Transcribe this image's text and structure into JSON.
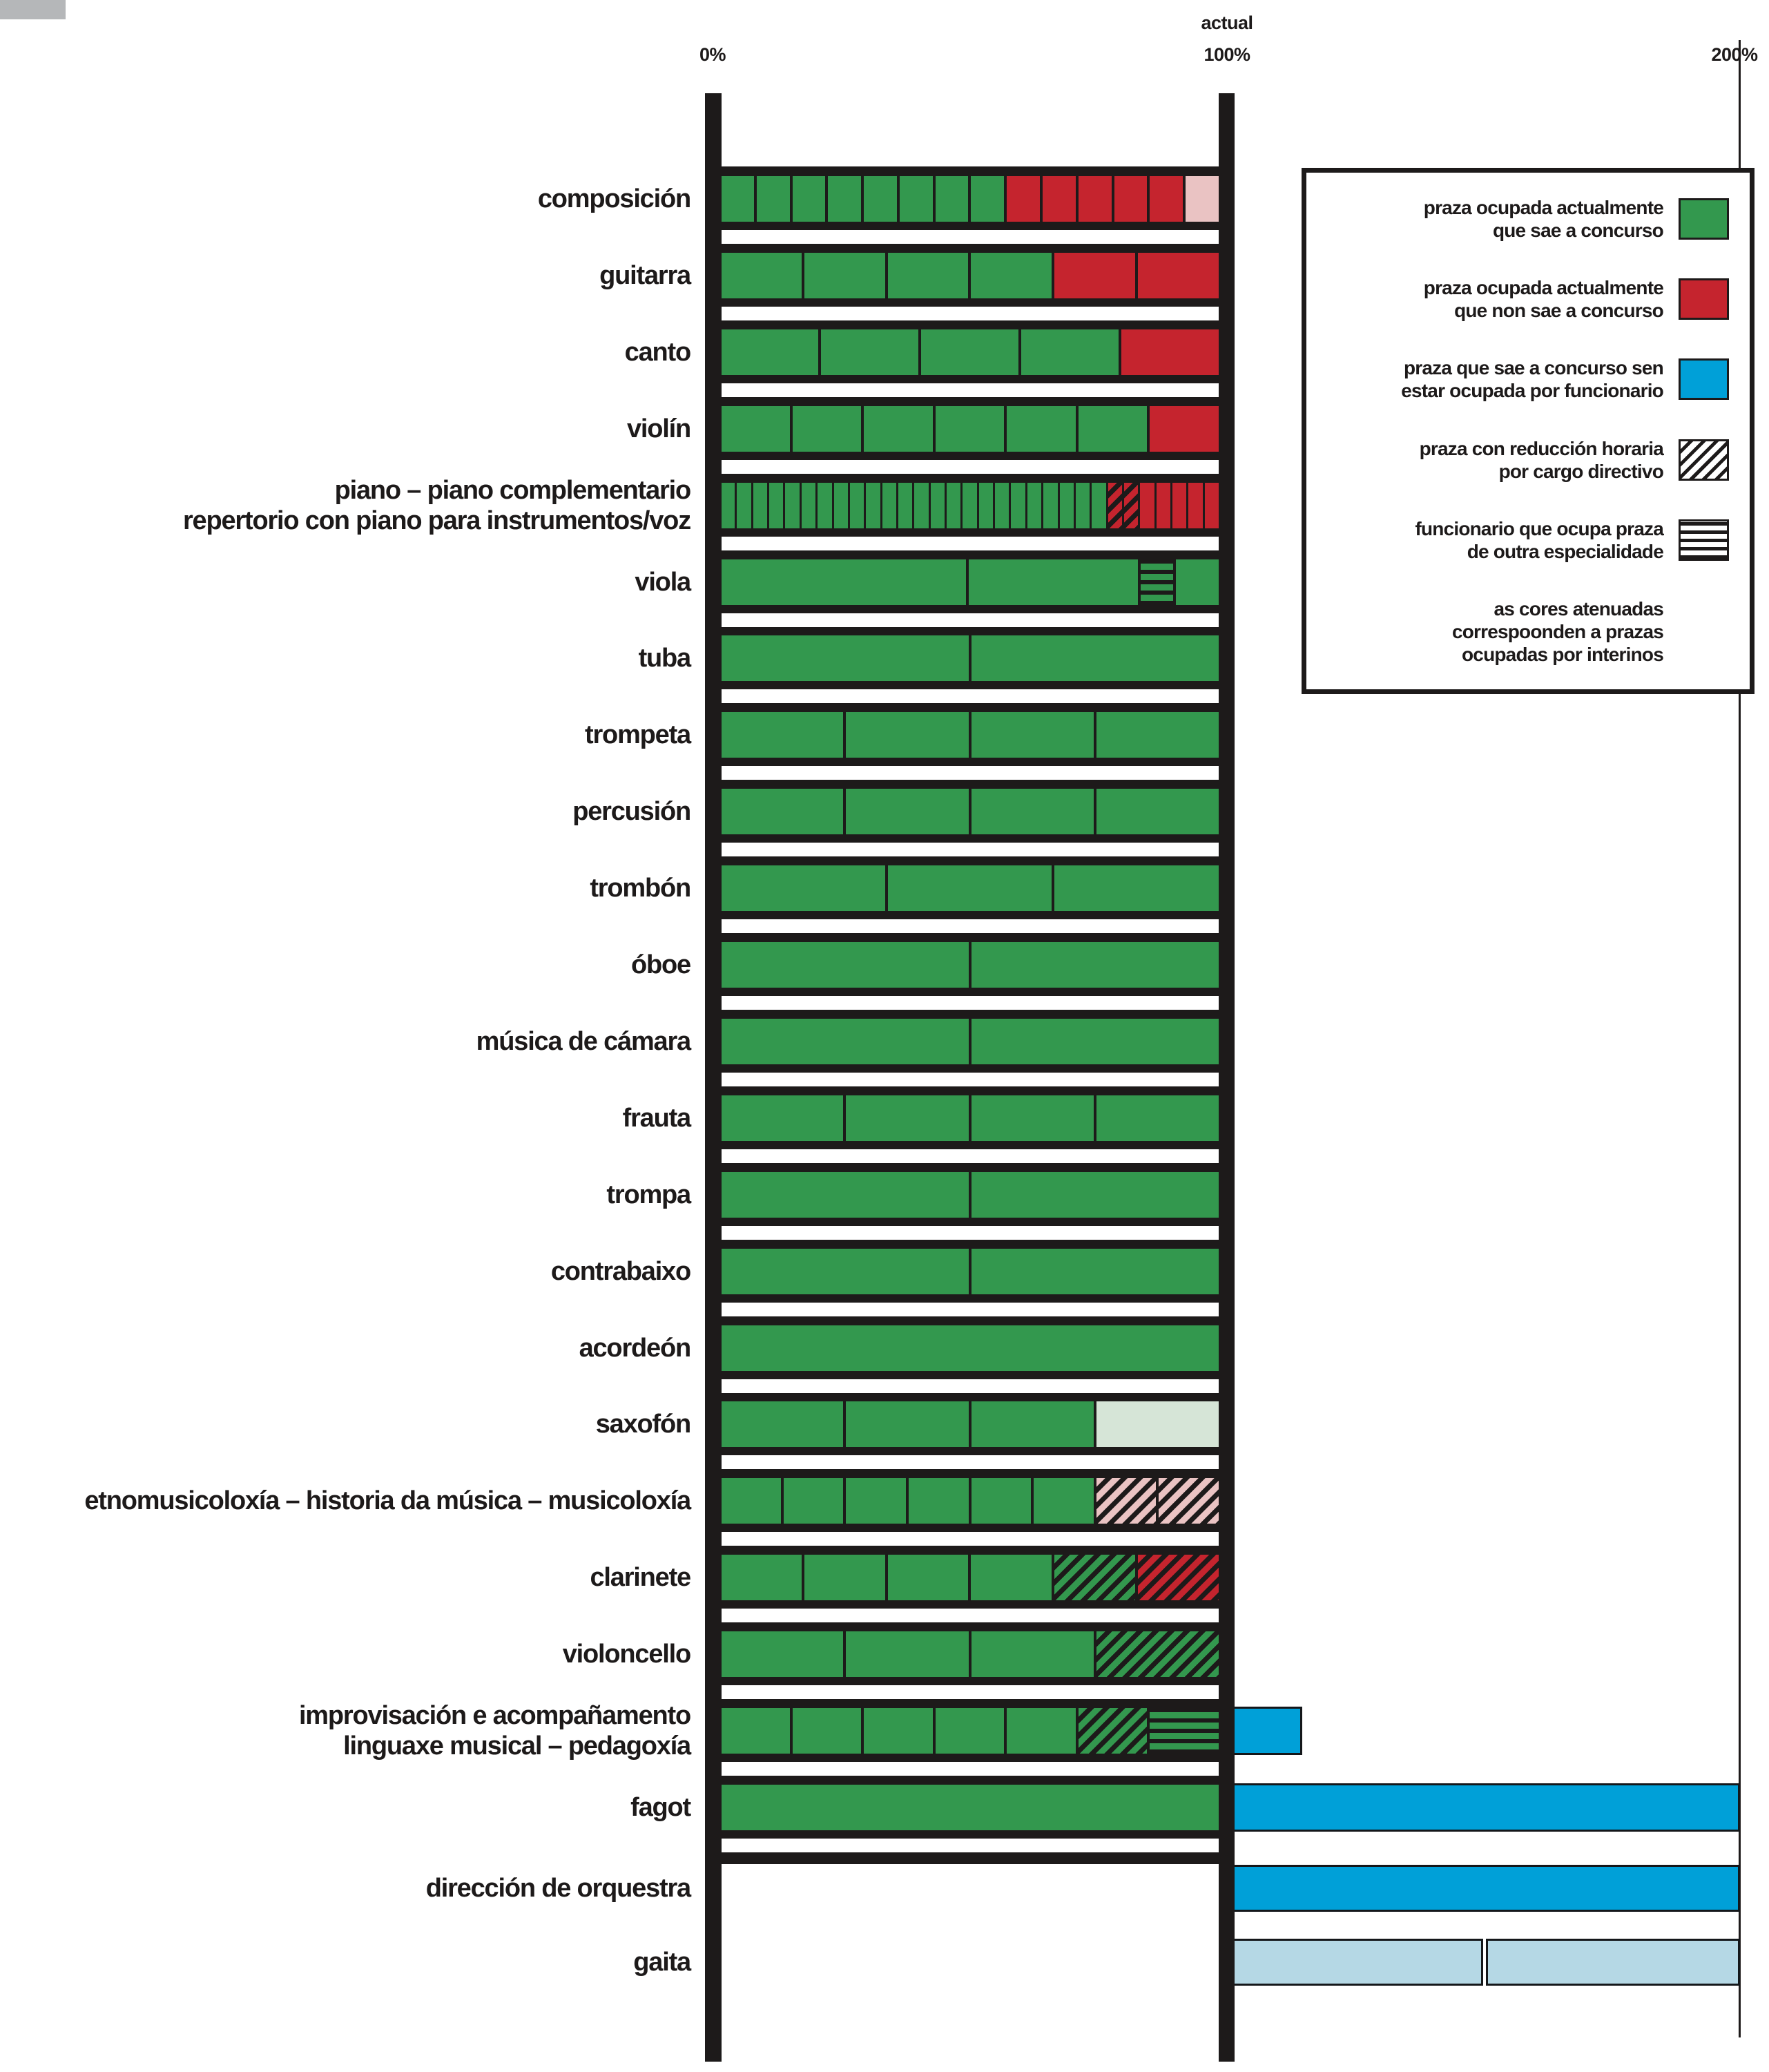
{
  "axis": {
    "zero": "0%",
    "actual": "actual",
    "hundred": "100%",
    "two_hundred": "200%"
  },
  "legend": {
    "items": [
      {
        "lines": [
          "praza ocupada actualmente",
          "que sae a concurso"
        ],
        "swatch": "green"
      },
      {
        "lines": [
          "praza ocupada actualmente",
          "que non sae a concurso"
        ],
        "swatch": "red"
      },
      {
        "lines": [
          "praza que sae a concurso sen",
          "estar ocupada por funcionario"
        ],
        "swatch": "blue"
      },
      {
        "lines": [
          "praza con reducción horaria",
          "por cargo directivo"
        ],
        "swatch": "diag"
      },
      {
        "lines": [
          "funcionario que ocupa praza",
          "de outra especialidade"
        ],
        "swatch": "hlines"
      },
      {
        "lines": [
          "as cores atenuadas",
          "correspoonden a prazas",
          "ocupadas por interinos"
        ],
        "swatch": null
      }
    ]
  },
  "chart_data": {
    "type": "bar",
    "subtype": "stacked-unit-ladder",
    "xlabel": "",
    "ylabel": "",
    "x_axis": {
      "min_pct": 0,
      "max_pct": 200,
      "ticks": [
        "0%",
        "100%",
        "200%"
      ],
      "actual_marker_label": "actual",
      "actual_marker_pct": 100
    },
    "grid": false,
    "legend_position": "right",
    "colors": {
      "green": "#33984e",
      "red": "#c5242e",
      "red-pale": "#eac3c3",
      "green-pale": "#d6e5d7",
      "blue": "#00a0d8",
      "blue-pale": "#b5d8e5",
      "frame-black": "#1d1a1a",
      "background": "#ffffff"
    },
    "style_meanings": {
      "green": "praza ocupada actualmente que sae a concurso",
      "red": "praza ocupada actualmente que non sae a concurso",
      "blue": "praza que sae a concurso sen estar ocupada por funcionario",
      "diag-hatch": "praza con reducción horaria por cargo directivo",
      "hlines-hatch": "funcionario que ocupa praza de outra especialidade",
      "pale": "cor atenuada: praza ocupada por interino"
    },
    "rows": [
      {
        "label": [
          "composición"
        ],
        "units": 14,
        "segments": [
          {
            "style": "green",
            "count": 8
          },
          {
            "style": "red",
            "count": 5
          },
          {
            "style": "red-pale",
            "count": 1
          }
        ]
      },
      {
        "label": [
          "guitarra"
        ],
        "units": 6,
        "segments": [
          {
            "style": "green",
            "count": 4
          },
          {
            "style": "red",
            "count": 2
          }
        ]
      },
      {
        "label": [
          "canto"
        ],
        "units": 5,
        "segments": [
          {
            "style": "green",
            "count": 4
          },
          {
            "style": "red",
            "count": 1
          }
        ]
      },
      {
        "label": [
          "violín"
        ],
        "units": 7,
        "segments": [
          {
            "style": "green",
            "count": 6
          },
          {
            "style": "red",
            "count": 1
          }
        ]
      },
      {
        "label": [
          "piano – piano complementario",
          "repertorio con piano para instrumentos/voz"
        ],
        "units": 31,
        "segments": [
          {
            "style": "green",
            "count": 24
          },
          {
            "style": "red-diag",
            "count": 2
          },
          {
            "style": "red",
            "count": 5
          }
        ]
      },
      {
        "label": [
          "viola"
        ],
        "segments": [
          {
            "style": "green",
            "width_pct": 50
          },
          {
            "style": "green",
            "width_pct": 34.6
          },
          {
            "style": "green-hlines",
            "width_pct": 6.6
          },
          {
            "style": "green",
            "width_pct": 8.8
          }
        ]
      },
      {
        "label": [
          "tuba"
        ],
        "units": 2,
        "segments": [
          {
            "style": "green",
            "count": 2
          }
        ]
      },
      {
        "label": [
          "trompeta"
        ],
        "units": 4,
        "segments": [
          {
            "style": "green",
            "count": 4
          }
        ]
      },
      {
        "label": [
          "percusión"
        ],
        "units": 4,
        "segments": [
          {
            "style": "green",
            "count": 4
          }
        ]
      },
      {
        "label": [
          "trombón"
        ],
        "units": 3,
        "segments": [
          {
            "style": "green",
            "count": 3
          }
        ]
      },
      {
        "label": [
          "óboe"
        ],
        "units": 2,
        "segments": [
          {
            "style": "green",
            "count": 2
          }
        ]
      },
      {
        "label": [
          "música de cámara"
        ],
        "units": 2,
        "segments": [
          {
            "style": "green",
            "count": 2
          }
        ]
      },
      {
        "label": [
          "frauta"
        ],
        "units": 4,
        "segments": [
          {
            "style": "green",
            "count": 4
          }
        ]
      },
      {
        "label": [
          "trompa"
        ],
        "units": 2,
        "segments": [
          {
            "style": "green",
            "count": 2
          }
        ]
      },
      {
        "label": [
          "contrabaixo"
        ],
        "units": 2,
        "segments": [
          {
            "style": "green",
            "count": 2
          }
        ]
      },
      {
        "label": [
          "acordeón"
        ],
        "units": 1,
        "segments": [
          {
            "style": "green",
            "count": 1
          }
        ]
      },
      {
        "label": [
          "saxofón"
        ],
        "units": 4,
        "segments": [
          {
            "style": "green",
            "count": 3
          },
          {
            "style": "green-pale",
            "count": 1
          }
        ]
      },
      {
        "label": [
          "etnomusicoloxía – historia da música – musicoloxía"
        ],
        "units": 8,
        "segments": [
          {
            "style": "green",
            "count": 6
          },
          {
            "style": "pink-diag",
            "count": 2
          }
        ]
      },
      {
        "label": [
          "clarinete"
        ],
        "units": 6,
        "segments": [
          {
            "style": "green",
            "count": 4
          },
          {
            "style": "green-diag",
            "count": 1
          },
          {
            "style": "red-diag",
            "count": 1
          }
        ]
      },
      {
        "label": [
          "violoncello"
        ],
        "units": 4,
        "segments": [
          {
            "style": "green",
            "count": 3
          },
          {
            "style": "green-diag",
            "count": 1
          }
        ]
      },
      {
        "label": [
          "improvisación e acompañamento",
          "linguaxe musical – pedagoxía"
        ],
        "units": 7,
        "segments": [
          {
            "style": "green",
            "count": 5
          },
          {
            "style": "green-diag",
            "count": 1
          },
          {
            "style": "green-hlines",
            "count": 1
          }
        ],
        "over": [
          {
            "style": "blue",
            "from_pct": 100,
            "to_pct": 114.3
          }
        ]
      },
      {
        "label": [
          "fagot"
        ],
        "units": 1,
        "segments": [
          {
            "style": "green",
            "count": 1
          }
        ],
        "over": [
          {
            "style": "blue",
            "from_pct": 100,
            "to_pct": 200
          }
        ]
      },
      {
        "label": [
          "dirección de orquestra"
        ],
        "framed": false,
        "over": [
          {
            "style": "blue",
            "from_pct": 100,
            "to_pct": 200
          }
        ]
      },
      {
        "label": [
          "gaita"
        ],
        "framed": false,
        "over": [
          {
            "style": "blue-pale",
            "from_pct": 100,
            "to_pct": 149.7
          },
          {
            "style": "blue-pale",
            "from_pct": 150.3,
            "to_pct": 200
          }
        ]
      }
    ]
  }
}
